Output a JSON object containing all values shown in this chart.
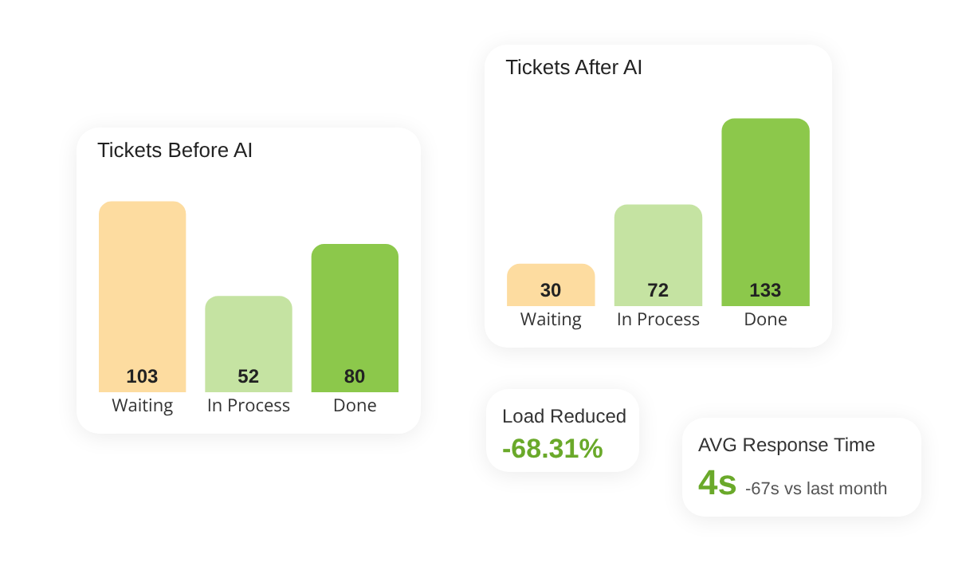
{
  "chart_data": [
    {
      "type": "bar",
      "title": "Tickets Before AI",
      "categories": [
        "Waiting",
        "In Process",
        "Done"
      ],
      "values": [
        103,
        52,
        80
      ],
      "colors": [
        "#fddca0",
        "#c5e3a2",
        "#8cc84b"
      ],
      "data_labels": true
    },
    {
      "type": "bar",
      "title": "Tickets After AI",
      "categories": [
        "Waiting",
        "In Process",
        "Done"
      ],
      "values": [
        30,
        72,
        133
      ],
      "colors": [
        "#fddca0",
        "#c5e3a2",
        "#8cc84b"
      ],
      "data_labels": true
    },
    {
      "type": "other",
      "title": "Load Reduced",
      "annotations": [
        "-68.31%"
      ]
    },
    {
      "type": "other",
      "title": "AVG Response Time",
      "annotations": [
        "4s",
        "-67s vs last month"
      ]
    }
  ]
}
